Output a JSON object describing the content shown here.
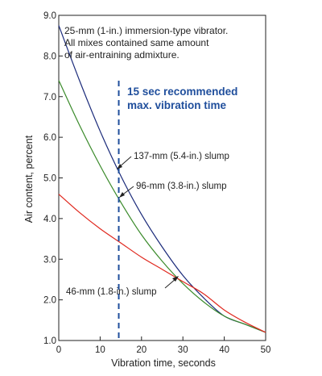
{
  "chart_data": {
    "type": "line",
    "xlabel": "Vibration time, seconds",
    "ylabel": "Air content, percent",
    "xlim": [
      0,
      50
    ],
    "ylim": [
      1.0,
      9.0
    ],
    "x_ticks": [
      "0",
      "10",
      "20",
      "30",
      "40",
      "50"
    ],
    "y_ticks": [
      "1.0",
      "2.0",
      "3.0",
      "4.0",
      "5.0",
      "6.0",
      "7.0",
      "8.0",
      "9.0"
    ],
    "grid": false,
    "note": [
      "25-mm (1-in.) immersion-type vibrator.",
      "All mixes contained same amount",
      "of air-entraining admixture."
    ],
    "series": [
      {
        "name": "137-mm (5.4-in.) slump",
        "color": "#1a2a7a",
        "x": [
          0,
          5,
          10,
          15,
          20,
          25,
          30,
          35,
          40,
          45,
          50
        ],
        "y": [
          8.75,
          7.4,
          6.15,
          5.05,
          4.1,
          3.3,
          2.6,
          2.05,
          1.6,
          1.4,
          1.2
        ]
      },
      {
        "name": "96-mm (3.8-in.) slump",
        "color": "#3a8a2a",
        "x": [
          0,
          5,
          10,
          15,
          20,
          25,
          30,
          35,
          40,
          45,
          50
        ],
        "y": [
          7.4,
          6.3,
          5.3,
          4.4,
          3.6,
          2.95,
          2.4,
          1.95,
          1.6,
          1.4,
          1.2
        ]
      },
      {
        "name": "46-mm (1.8-in.) slump",
        "color": "#e0281e",
        "x": [
          0,
          5,
          10,
          15,
          20,
          25,
          30,
          35,
          40,
          45,
          50
        ],
        "y": [
          4.6,
          4.15,
          3.75,
          3.4,
          3.05,
          2.75,
          2.45,
          2.15,
          1.75,
          1.45,
          1.2
        ]
      }
    ],
    "reference_line": {
      "x": 14.5,
      "color": "#1f4e9c",
      "label": [
        "15 sec recommended",
        "max. vibration time"
      ]
    }
  }
}
